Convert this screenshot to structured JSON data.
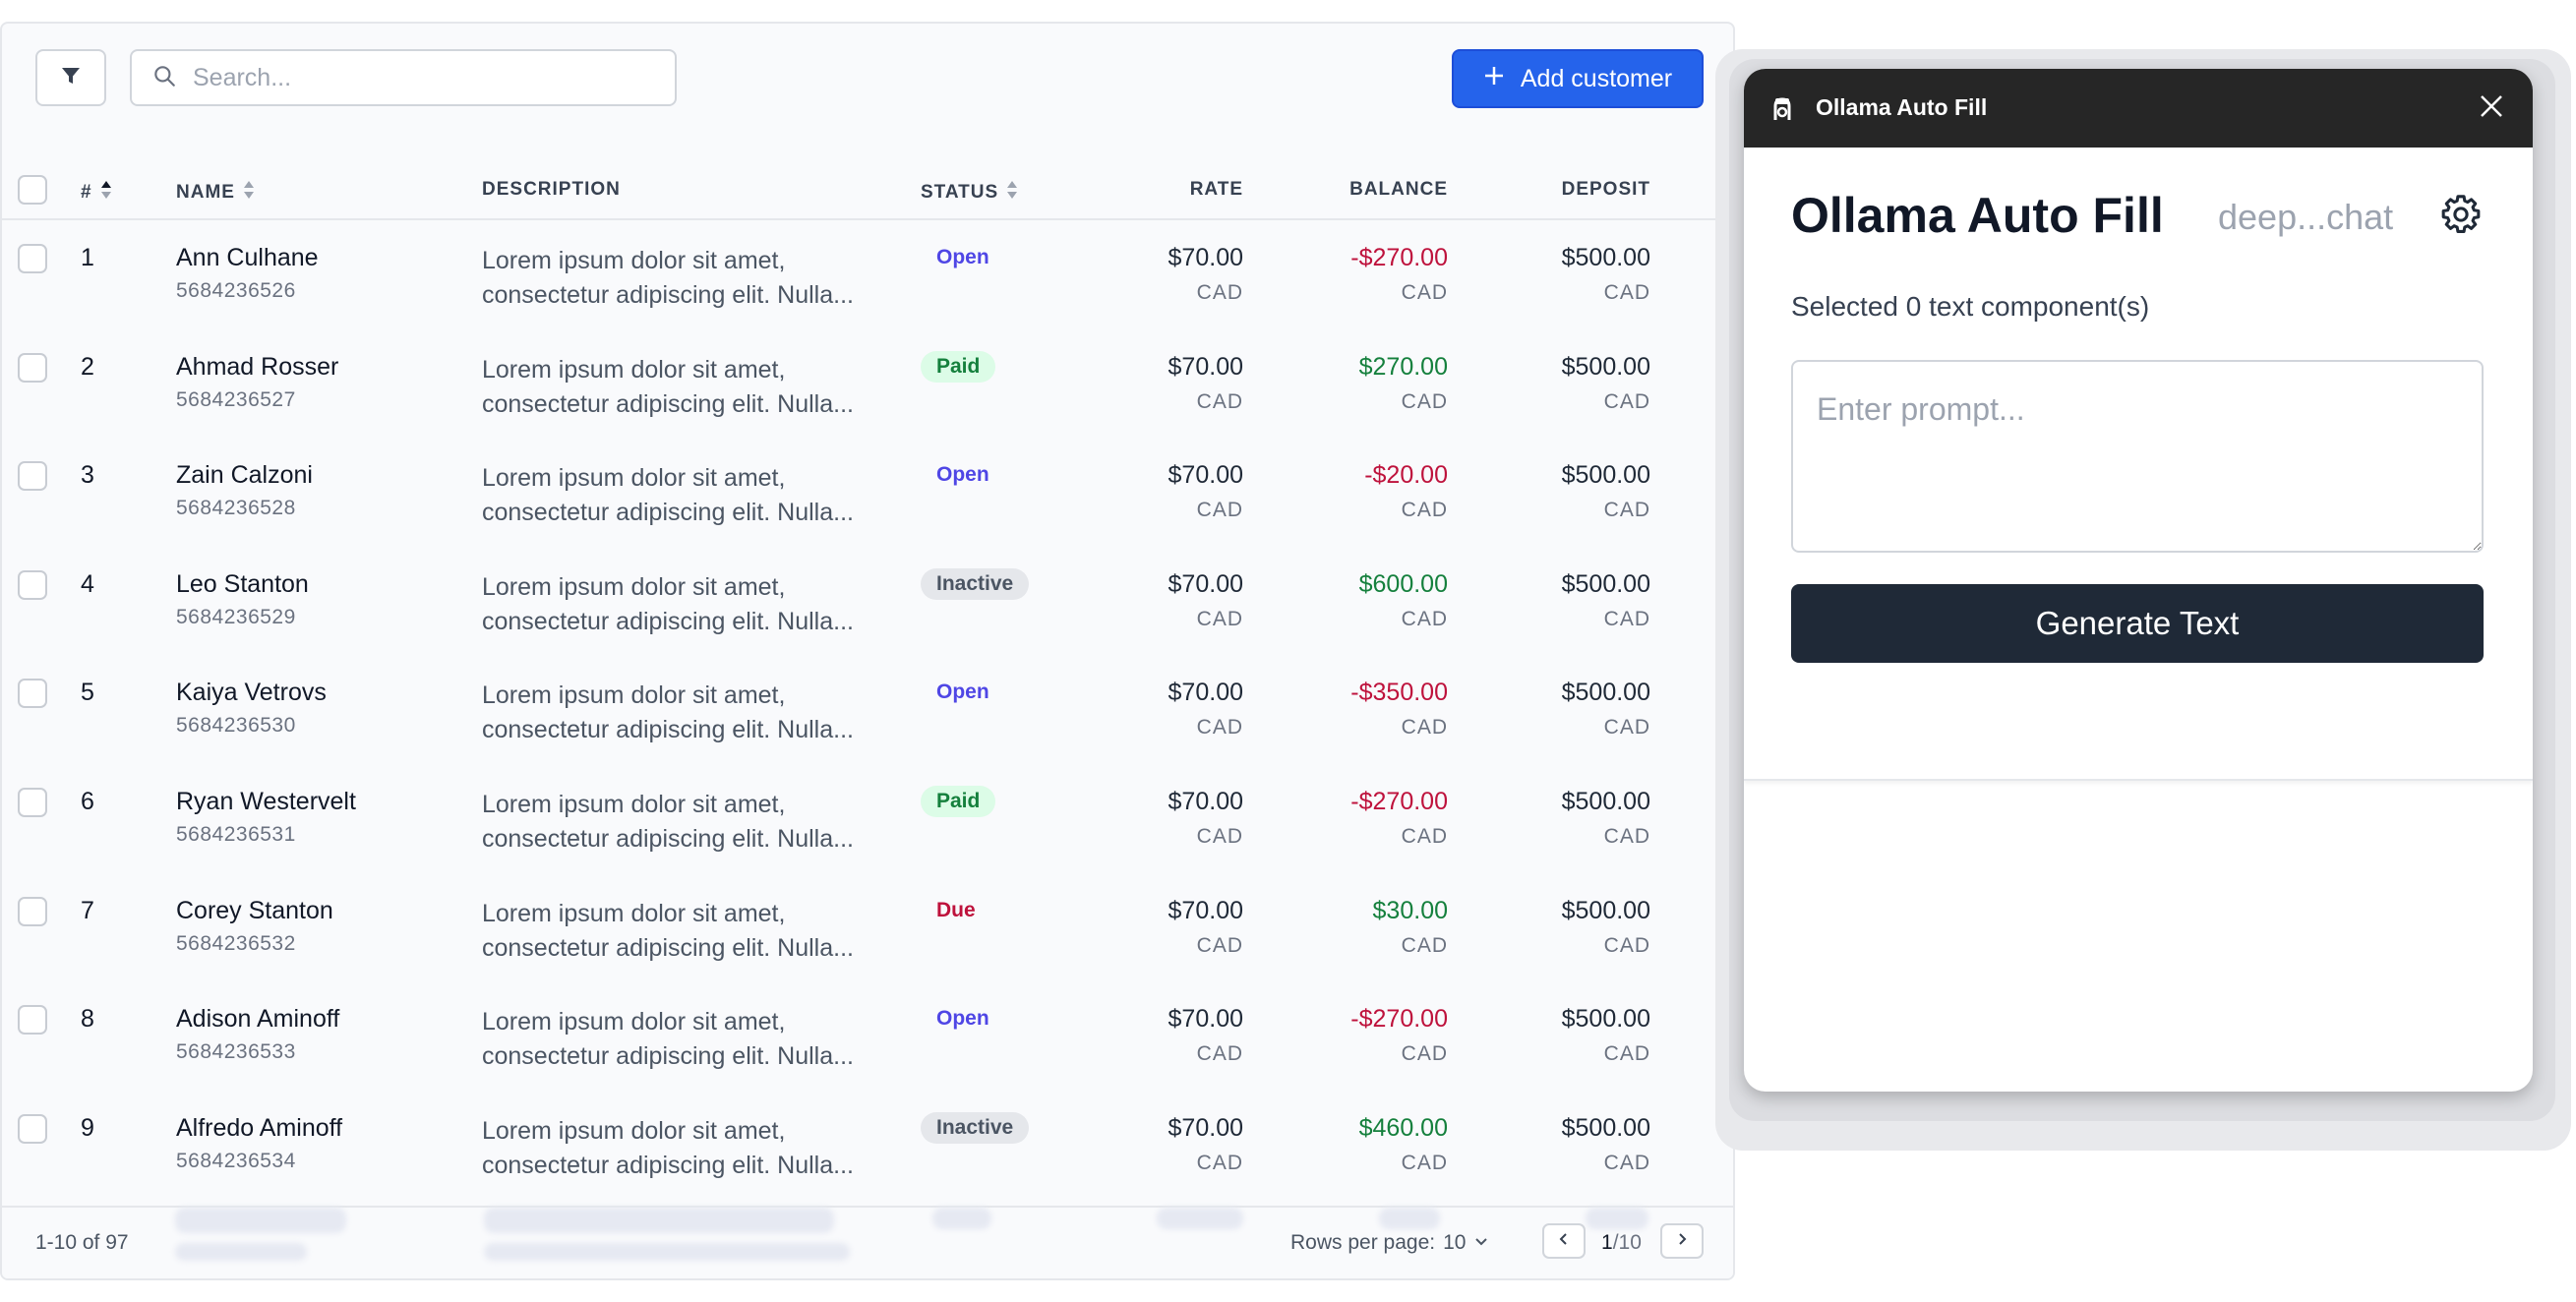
{
  "toolbar": {
    "search_placeholder": "Search...",
    "add_label": "Add customer"
  },
  "table": {
    "columns": {
      "num": "#",
      "name": "NAME",
      "description": "DESCRIPTION",
      "status": "STATUS",
      "rate": "RATE",
      "balance": "BALANCE",
      "deposit": "DEPOSIT"
    },
    "rows": [
      {
        "num": "1",
        "name": "Ann Culhane",
        "phone": "5684236526",
        "desc1": "Lorem ipsum dolor sit amet,",
        "desc2": "consectetur adipiscing elit. Nulla...",
        "status": "Open",
        "status_type": "open",
        "rate": "$70.00",
        "rate_cur": "CAD",
        "balance": "-$270.00",
        "balance_type": "neg",
        "balance_cur": "CAD",
        "deposit": "$500.00",
        "deposit_cur": "CAD"
      },
      {
        "num": "2",
        "name": "Ahmad Rosser",
        "phone": "5684236527",
        "desc1": "Lorem ipsum dolor sit amet,",
        "desc2": "consectetur adipiscing elit. Nulla...",
        "status": "Paid",
        "status_type": "paid",
        "rate": "$70.00",
        "rate_cur": "CAD",
        "balance": "$270.00",
        "balance_type": "pos",
        "balance_cur": "CAD",
        "deposit": "$500.00",
        "deposit_cur": "CAD"
      },
      {
        "num": "3",
        "name": "Zain Calzoni",
        "phone": "5684236528",
        "desc1": "Lorem ipsum dolor sit amet,",
        "desc2": "consectetur adipiscing elit. Nulla...",
        "status": "Open",
        "status_type": "open",
        "rate": "$70.00",
        "rate_cur": "CAD",
        "balance": "-$20.00",
        "balance_type": "neg",
        "balance_cur": "CAD",
        "deposit": "$500.00",
        "deposit_cur": "CAD"
      },
      {
        "num": "4",
        "name": "Leo Stanton",
        "phone": "5684236529",
        "desc1": "Lorem ipsum dolor sit amet,",
        "desc2": "consectetur adipiscing elit. Nulla...",
        "status": "Inactive",
        "status_type": "inactive",
        "rate": "$70.00",
        "rate_cur": "CAD",
        "balance": "$600.00",
        "balance_type": "pos",
        "balance_cur": "CAD",
        "deposit": "$500.00",
        "deposit_cur": "CAD"
      },
      {
        "num": "5",
        "name": "Kaiya Vetrovs",
        "phone": "5684236530",
        "desc1": "Lorem ipsum dolor sit amet,",
        "desc2": "consectetur adipiscing elit. Nulla...",
        "status": "Open",
        "status_type": "open",
        "rate": "$70.00",
        "rate_cur": "CAD",
        "balance": "-$350.00",
        "balance_type": "neg",
        "balance_cur": "CAD",
        "deposit": "$500.00",
        "deposit_cur": "CAD"
      },
      {
        "num": "6",
        "name": "Ryan Westervelt",
        "phone": "5684236531",
        "desc1": "Lorem ipsum dolor sit amet,",
        "desc2": "consectetur adipiscing elit. Nulla...",
        "status": "Paid",
        "status_type": "paid",
        "rate": "$70.00",
        "rate_cur": "CAD",
        "balance": "-$270.00",
        "balance_type": "neg",
        "balance_cur": "CAD",
        "deposit": "$500.00",
        "deposit_cur": "CAD"
      },
      {
        "num": "7",
        "name": "Corey Stanton",
        "phone": "5684236532",
        "desc1": "Lorem ipsum dolor sit amet,",
        "desc2": "consectetur adipiscing elit. Nulla...",
        "status": "Due",
        "status_type": "due",
        "rate": "$70.00",
        "rate_cur": "CAD",
        "balance": "$30.00",
        "balance_type": "pos",
        "balance_cur": "CAD",
        "deposit": "$500.00",
        "deposit_cur": "CAD"
      },
      {
        "num": "8",
        "name": "Adison Aminoff",
        "phone": "5684236533",
        "desc1": "Lorem ipsum dolor sit amet,",
        "desc2": "consectetur adipiscing elit. Nulla...",
        "status": "Open",
        "status_type": "open",
        "rate": "$70.00",
        "rate_cur": "CAD",
        "balance": "-$270.00",
        "balance_type": "neg",
        "balance_cur": "CAD",
        "deposit": "$500.00",
        "deposit_cur": "CAD"
      },
      {
        "num": "9",
        "name": "Alfredo Aminoff",
        "phone": "5684236534",
        "desc1": "Lorem ipsum dolor sit amet,",
        "desc2": "consectetur adipiscing elit. Nulla...",
        "status": "Inactive",
        "status_type": "inactive",
        "rate": "$70.00",
        "rate_cur": "CAD",
        "balance": "$460.00",
        "balance_type": "pos",
        "balance_cur": "CAD",
        "deposit": "$500.00",
        "deposit_cur": "CAD"
      }
    ]
  },
  "footer": {
    "range": "1-10 of 97",
    "rows_per_page_label": "Rows per page:",
    "rows_per_page_value": "10",
    "current_page": "1",
    "total_pages": "/10"
  },
  "panel": {
    "header_title": "Ollama Auto Fill",
    "title": "Ollama Auto Fill",
    "model": "deep...chat",
    "selected_text": "Selected 0 text component(s)",
    "prompt_placeholder": "Enter prompt...",
    "generate_label": "Generate Text"
  },
  "icons": {
    "filter": "filter-icon",
    "search": "search-icon",
    "add": "plus-icon",
    "sort": "sort-icon",
    "chevron_down": "chevron-down-icon",
    "prev": "chevron-left-icon",
    "next": "chevron-right-icon",
    "logo": "ollama-logo-icon",
    "close": "close-icon",
    "settings": "gear-icon"
  },
  "colors": {
    "accent": "#2563eb",
    "negative": "#be123c",
    "positive": "#15803d",
    "panel_header": "#262626",
    "generate_button": "#1f2937"
  }
}
